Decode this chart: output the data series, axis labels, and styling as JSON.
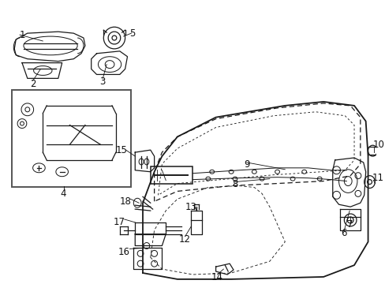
{
  "bg_color": "#ffffff",
  "line_color": "#1a1a1a",
  "label_color": "#111111",
  "label_fontsize": 8.5,
  "fig_width": 4.89,
  "fig_height": 3.6,
  "dpi": 100
}
